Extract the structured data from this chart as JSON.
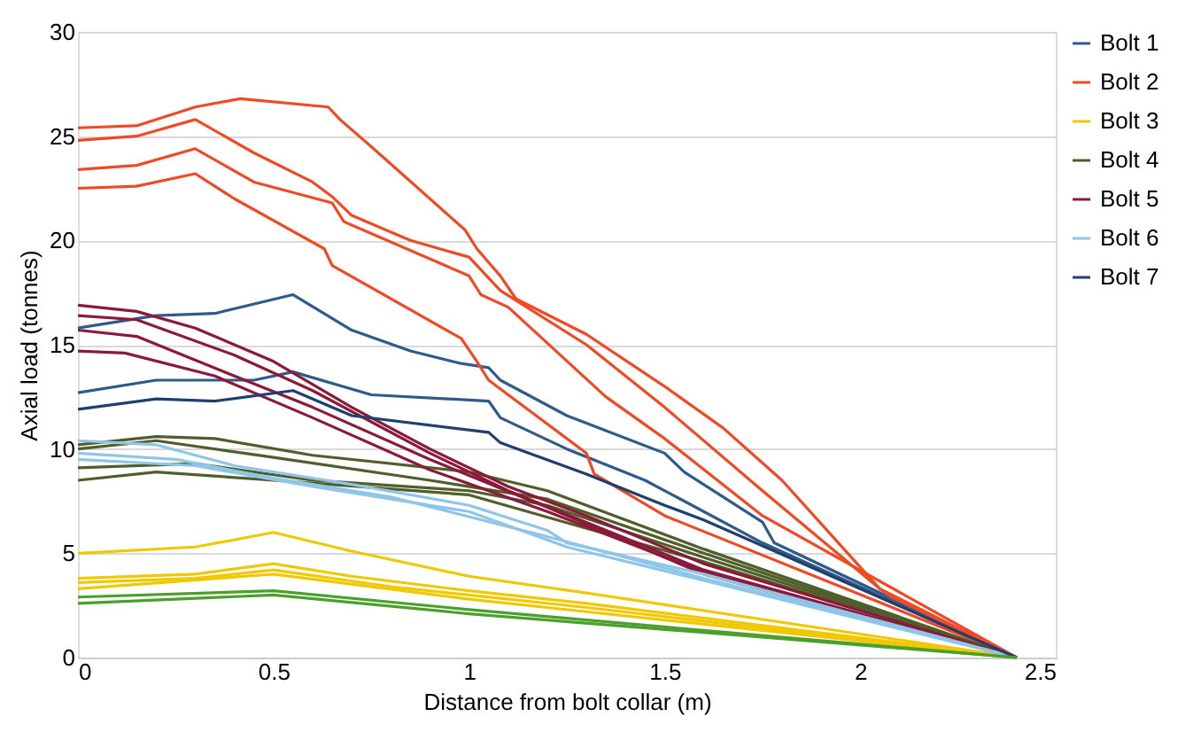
{
  "chart_data": {
    "type": "line",
    "xlabel": "Distance from bolt collar (m)",
    "ylabel": "Axial load (tonnes)",
    "xlim": [
      0,
      2.5
    ],
    "xticks": [
      0,
      0.5,
      1,
      1.5,
      2,
      2.5
    ],
    "ylim": [
      0,
      30
    ],
    "yticks": [
      0,
      5,
      10,
      15,
      20,
      25,
      30
    ],
    "grid": "y",
    "legend": "right",
    "marker": "none",
    "line_style": "solid",
    "series": [
      {
        "name": "Bolt 1",
        "color": "#2f5b8a",
        "x": [
          0,
          0.2,
          0.35,
          0.55,
          0.7,
          0.85,
          0.98,
          1.05,
          1.08,
          1.25,
          1.5,
          1.55,
          1.75,
          1.78,
          2.4
        ],
        "values": [
          15.8,
          16.4,
          16.5,
          17.4,
          15.7,
          14.7,
          14.1,
          13.9,
          13.3,
          11.6,
          9.8,
          8.9,
          6.5,
          5.5,
          0
        ]
      },
      {
        "color": "#2f5b8a",
        "x": [
          0,
          0.2,
          0.45,
          0.55,
          0.75,
          1.05,
          1.08,
          1.25,
          1.45,
          1.6,
          1.75,
          2.4
        ],
        "values": [
          12.7,
          13.3,
          13.3,
          13.7,
          12.6,
          12.3,
          11.5,
          10,
          8.5,
          7,
          5.5,
          0
        ]
      },
      {
        "name": "Bolt 2",
        "color": "#f04a24",
        "x": [
          0,
          0.15,
          0.3,
          0.415,
          0.64,
          0.67,
          0.75,
          0.99,
          1.02,
          1.08,
          1.12,
          1.3,
          1.5,
          1.65,
          1.8,
          2.05,
          2.08,
          2.4
        ],
        "values": [
          25.4,
          25.5,
          26.4,
          26.8,
          26.4,
          25.8,
          24.5,
          20.5,
          19.6,
          18.3,
          17.2,
          15.5,
          13,
          11,
          8.5,
          3.3,
          2.9,
          0
        ]
      },
      {
        "color": "#f04a24",
        "x": [
          0,
          0.15,
          0.3,
          0.45,
          0.6,
          0.65,
          0.7,
          0.85,
          1,
          1.08,
          1.3,
          1.5,
          1.75,
          2.05,
          2.4
        ],
        "values": [
          24.8,
          25,
          25.8,
          24.2,
          22.8,
          22.1,
          21.2,
          20,
          19.2,
          17.6,
          15,
          12,
          8,
          3.3,
          0
        ]
      },
      {
        "color": "#f04a24",
        "x": [
          0,
          0.15,
          0.3,
          0.45,
          0.65,
          0.68,
          1,
          1.03,
          1.1,
          1.35,
          1.5,
          1.75,
          2.4
        ],
        "values": [
          23.4,
          23.6,
          24.4,
          22.8,
          21.8,
          20.9,
          18.3,
          17.4,
          16.8,
          12.5,
          10.5,
          6.8,
          0
        ]
      },
      {
        "color": "#f04a24",
        "x": [
          0,
          0.15,
          0.3,
          0.4,
          0.63,
          0.65,
          0.98,
          1.02,
          1.05,
          1.3,
          1.32,
          1.5,
          2.4
        ],
        "values": [
          22.5,
          22.6,
          23.2,
          22,
          19.6,
          18.8,
          15.3,
          14.2,
          13.3,
          9.8,
          8.8,
          6.8,
          0
        ]
      },
      {
        "name": "Bolt 3",
        "color": "#f0c800",
        "x": [
          0,
          0.3,
          0.5,
          0.7,
          1,
          1.3,
          2.4
        ],
        "values": [
          5,
          5.3,
          6,
          5.1,
          3.9,
          3.1,
          0
        ]
      },
      {
        "color": "#f0c800",
        "x": [
          0,
          0.3,
          0.5,
          0.7,
          1,
          1.3,
          2.4
        ],
        "values": [
          3.8,
          4,
          4.5,
          3.9,
          3.2,
          2.6,
          0
        ]
      },
      {
        "color": "#f0c800",
        "x": [
          0,
          0.3,
          0.5,
          0.8,
          1.3,
          2.4
        ],
        "values": [
          3.6,
          3.8,
          4.2,
          3.4,
          2.4,
          0
        ]
      },
      {
        "color": "#f0c800",
        "x": [
          0,
          0.5,
          1,
          1.3,
          2.4
        ],
        "values": [
          3.3,
          4,
          2.8,
          2.2,
          0
        ]
      },
      {
        "name": "Bolt 4",
        "color": "#4f5e2a",
        "x": [
          0,
          0.2,
          0.35,
          0.6,
          1,
          1.2,
          1.6,
          2.4
        ],
        "values": [
          10.2,
          10.6,
          10.5,
          9.7,
          8.9,
          8,
          5.2,
          0
        ]
      },
      {
        "color": "#4f5e2a",
        "x": [
          0,
          0.2,
          0.5,
          0.9,
          1.2,
          1.6,
          2.4
        ],
        "values": [
          10,
          10.4,
          9.6,
          8.5,
          7.6,
          5,
          0
        ]
      },
      {
        "color": "#4f5e2a",
        "x": [
          0,
          0.3,
          0.6,
          1,
          1.2,
          1.6,
          2.4
        ],
        "values": [
          9.1,
          9.3,
          8.5,
          8,
          7.3,
          4.8,
          0
        ]
      },
      {
        "color": "#4f5e2a",
        "x": [
          0,
          0.2,
          0.5,
          1,
          1.6,
          2.4
        ],
        "values": [
          8.5,
          8.9,
          8.5,
          7.8,
          4.6,
          0
        ]
      },
      {
        "name": "Bolt 5",
        "color": "#8b1a3a",
        "x": [
          0,
          0.15,
          0.3,
          0.5,
          0.7,
          0.9,
          1.1,
          1.3,
          1.6,
          2.4
        ],
        "values": [
          16.9,
          16.6,
          15.8,
          14.2,
          12,
          10,
          8.2,
          6.8,
          4.5,
          0
        ]
      },
      {
        "color": "#8b1a3a",
        "x": [
          0,
          0.15,
          0.4,
          0.6,
          0.9,
          1.1,
          1.6,
          2.4
        ],
        "values": [
          16.4,
          16.2,
          14.5,
          12.8,
          9.8,
          8,
          4.2,
          0
        ]
      },
      {
        "color": "#8b1a3a",
        "x": [
          0,
          0.15,
          0.4,
          0.6,
          0.9,
          1.2,
          1.6,
          2.4
        ],
        "values": [
          15.7,
          15.4,
          13.5,
          12,
          9.5,
          7.2,
          4,
          0
        ]
      },
      {
        "color": "#8b1a3a",
        "x": [
          0,
          0.12,
          0.35,
          0.6,
          0.9,
          1.2,
          1.6,
          2.4
        ],
        "values": [
          14.7,
          14.6,
          13.5,
          11.5,
          9,
          7,
          4.1,
          0
        ]
      },
      {
        "name": "Bolt 6",
        "color": "#8ec6ea",
        "x": [
          0,
          0.2,
          0.4,
          0.7,
          1,
          1.2,
          1.25,
          1.6,
          2.4
        ],
        "values": [
          10.4,
          10.2,
          9.2,
          8.3,
          7.3,
          6.1,
          5.5,
          4,
          0
        ]
      },
      {
        "color": "#8ec6ea",
        "x": [
          0,
          0.25,
          0.5,
          0.8,
          1.2,
          1.6,
          2.4
        ],
        "values": [
          9.8,
          9.5,
          8.6,
          7.7,
          5.8,
          3.8,
          0
        ]
      },
      {
        "color": "#8ec6ea",
        "x": [
          0,
          0.3,
          0.6,
          1,
          1.25,
          1.6,
          2.4
        ],
        "values": [
          9.5,
          9.2,
          8.2,
          7,
          5.3,
          3.7,
          0
        ]
      },
      {
        "name": "Bolt 7",
        "color": "#1f3f70",
        "x": [
          0,
          0.2,
          0.35,
          0.55,
          0.7,
          1.05,
          1.08,
          1.3,
          1.5,
          1.6,
          2.4
        ],
        "values": [
          11.9,
          12.4,
          12.3,
          12.8,
          11.6,
          10.8,
          10.3,
          8.8,
          7.3,
          6.6,
          0
        ]
      },
      {
        "color": "#4aa02a",
        "x": [
          0,
          0.5,
          1,
          1.6,
          2.4
        ],
        "values": [
          2.9,
          3.2,
          2.3,
          1.3,
          0
        ]
      },
      {
        "color": "#4aa02a",
        "x": [
          0,
          0.5,
          1,
          1.6,
          2.4
        ],
        "values": [
          2.6,
          3,
          2.1,
          1.2,
          0
        ]
      }
    ]
  }
}
